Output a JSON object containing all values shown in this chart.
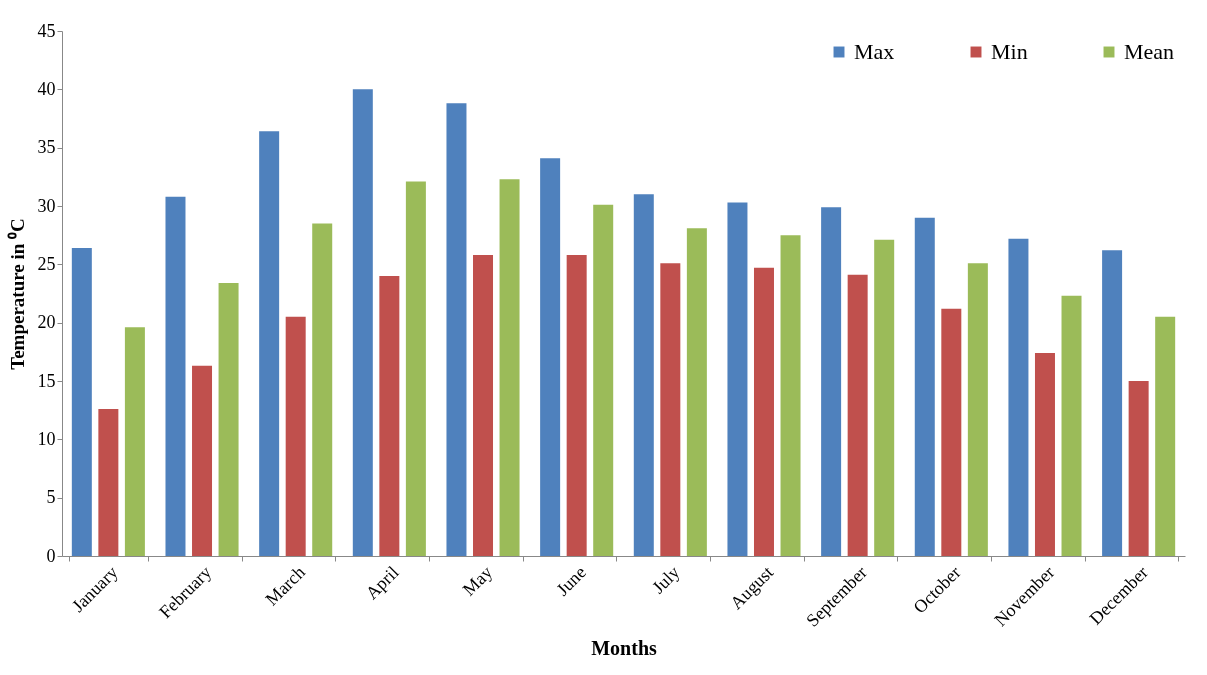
{
  "chart_data": {
    "type": "bar",
    "xlabel": "Months",
    "ylabel": "Temperature in ⁰C",
    "categories": [
      "January",
      "February",
      "March",
      "April",
      "May",
      "June",
      "July",
      "August",
      "September",
      "October",
      "November",
      "December"
    ],
    "series": [
      {
        "name": "Max",
        "color": "#4f81bd",
        "values": [
          26.4,
          30.8,
          36.4,
          40.0,
          38.8,
          34.1,
          31.0,
          30.3,
          29.9,
          29.0,
          27.2,
          26.2
        ]
      },
      {
        "name": "Min",
        "color": "#c0504d",
        "values": [
          12.6,
          16.3,
          20.5,
          24.0,
          25.8,
          25.8,
          25.1,
          24.7,
          24.1,
          21.2,
          17.4,
          15.0
        ]
      },
      {
        "name": "Mean",
        "color": "#9bbb59",
        "values": [
          19.6,
          23.4,
          28.5,
          32.1,
          32.3,
          30.1,
          28.1,
          27.5,
          27.1,
          25.1,
          22.3,
          20.5
        ]
      }
    ],
    "ylim": [
      0,
      45
    ],
    "yticks": [
      0,
      5,
      10,
      15,
      20,
      25,
      30,
      35,
      40,
      45
    ],
    "grid": false,
    "legend": "top right"
  }
}
